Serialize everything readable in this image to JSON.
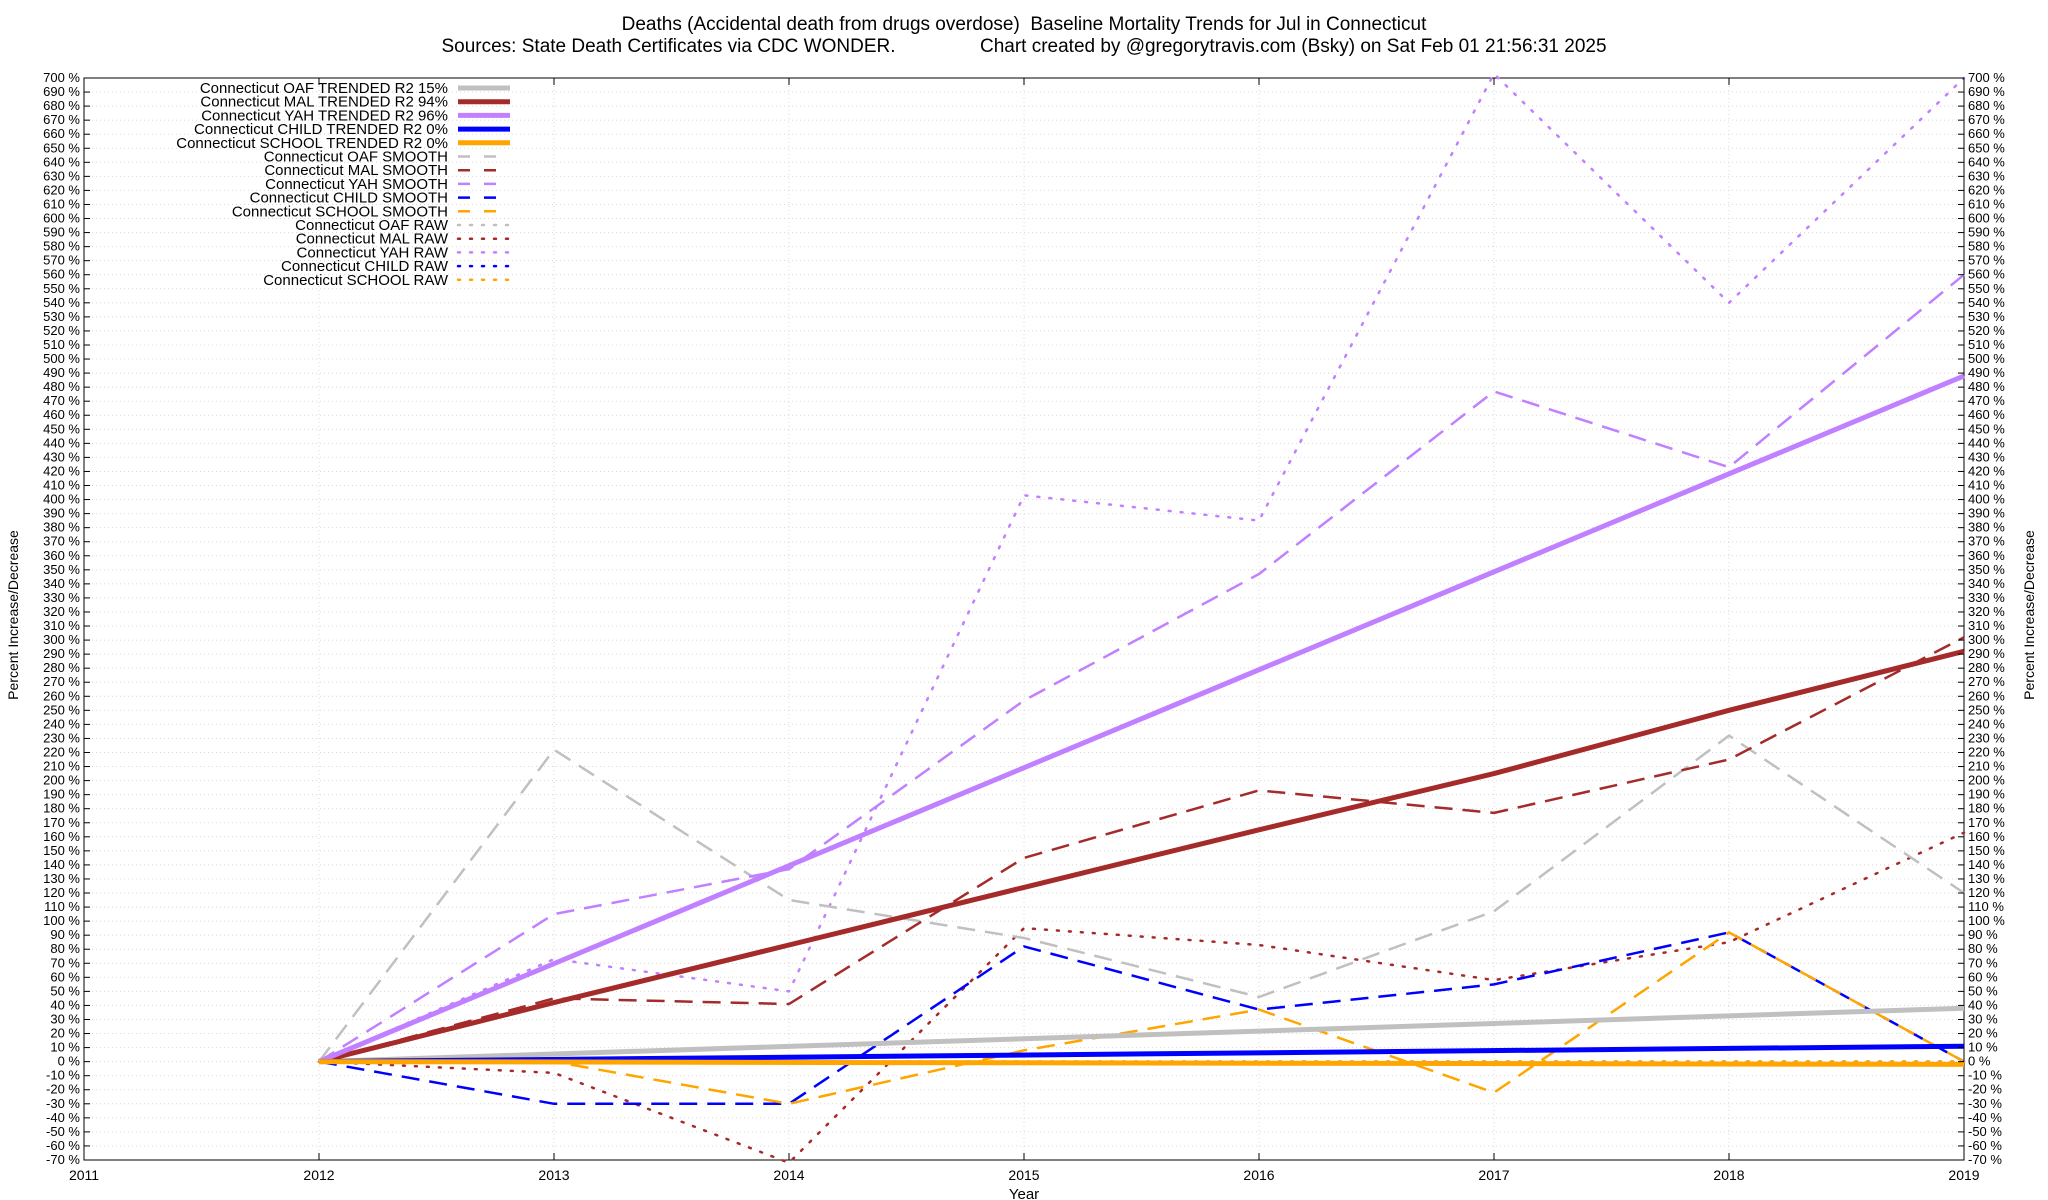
{
  "chart_data": {
    "type": "line",
    "title": "Deaths (Accidental death from drugs overdose)  Baseline Mortality Trends for Jul in Connecticut",
    "subtitle": "Sources: State Death Certificates via CDC WONDER.                Chart created by @gregorytravis.com (Bsky) on Sat Feb 01 21:56:31 2025",
    "xlabel": "Year",
    "ylabel": "Percent Increase/Decrease",
    "ylabel_right": "Percent Increase/Decrease",
    "xlim": [
      2011,
      2019
    ],
    "ylim": [
      -70,
      700
    ],
    "x_ticks": [
      "2011",
      "2012",
      "2013",
      "2014",
      "2015",
      "2016",
      "2017",
      "2018",
      "2019"
    ],
    "y_ticks": [
      "-70 %",
      "-60 %",
      "-50 %",
      "-40 %",
      "-30 %",
      "-20 %",
      "-10 %",
      "0 %",
      "10 %",
      "20 %",
      "30 %",
      "40 %",
      "50 %",
      "60 %",
      "70 %",
      "80 %",
      "90 %",
      "100 %",
      "110 %",
      "120 %",
      "130 %",
      "140 %",
      "150 %",
      "160 %",
      "170 %",
      "180 %",
      "190 %",
      "200 %",
      "210 %",
      "220 %",
      "230 %",
      "240 %",
      "250 %",
      "260 %",
      "270 %",
      "280 %",
      "290 %",
      "300 %",
      "310 %",
      "320 %",
      "330 %",
      "340 %",
      "350 %",
      "360 %",
      "370 %",
      "380 %",
      "390 %",
      "400 %",
      "410 %",
      "420 %",
      "430 %",
      "440 %",
      "450 %",
      "460 %",
      "470 %",
      "480 %",
      "490 %",
      "500 %",
      "510 %",
      "520 %",
      "530 %",
      "540 %",
      "550 %",
      "560 %",
      "570 %",
      "580 %",
      "590 %",
      "600 %",
      "610 %",
      "620 %",
      "630 %",
      "640 %",
      "650 %",
      "660 %",
      "670 %",
      "680 %",
      "690 %",
      "700 %"
    ],
    "grid": true,
    "legend_position": "top-left",
    "series": [
      {
        "name": "Connecticut OAF TRENDED R2  15%",
        "style": "solid",
        "color": "#c0c0c0",
        "x": [
          2012,
          2019
        ],
        "y": [
          0,
          38
        ]
      },
      {
        "name": "Connecticut MAL TRENDED R2  94%",
        "style": "solid",
        "color": "#a52a2a",
        "x": [
          2012,
          2013,
          2014,
          2015,
          2016,
          2017,
          2018,
          2019
        ],
        "y": [
          0,
          42,
          83,
          124,
          165,
          205,
          250,
          292
        ]
      },
      {
        "name": "Connecticut YAH TRENDED R2  96%",
        "style": "solid",
        "color": "#c080ff",
        "x": [
          2012,
          2019
        ],
        "y": [
          0,
          488
        ]
      },
      {
        "name": "Connecticut CHILD TRENDED R2   0%",
        "style": "solid",
        "color": "#0000ff",
        "x": [
          2012,
          2019
        ],
        "y": [
          0,
          11
        ]
      },
      {
        "name": "Connecticut SCHOOL TRENDED R2   0%",
        "style": "solid",
        "color": "#ffa500",
        "x": [
          2012,
          2019
        ],
        "y": [
          0,
          -2
        ]
      },
      {
        "name": "Connecticut OAF SMOOTH",
        "style": "dashed",
        "color": "#c0c0c0",
        "x": [
          2012,
          2013,
          2014,
          2015,
          2016,
          2017,
          2018,
          2019
        ],
        "y": [
          0,
          222,
          115,
          88,
          46,
          107,
          232,
          120
        ]
      },
      {
        "name": "Connecticut MAL SMOOTH",
        "style": "dashed",
        "color": "#a52a2a",
        "x": [
          2012,
          2013,
          2014,
          2015,
          2016,
          2017,
          2018,
          2019
        ],
        "y": [
          0,
          45,
          41,
          145,
          193,
          177,
          215,
          302
        ]
      },
      {
        "name": "Connecticut YAH SMOOTH",
        "style": "dashed",
        "color": "#c080ff",
        "x": [
          2012,
          2013,
          2014,
          2015,
          2016,
          2017,
          2018,
          2019
        ],
        "y": [
          0,
          105,
          137,
          257,
          347,
          477,
          423,
          560
        ]
      },
      {
        "name": "Connecticut CHILD SMOOTH",
        "style": "dashed",
        "color": "#0000ff",
        "x": [
          2012,
          2013,
          2014,
          2015,
          2016,
          2017,
          2018,
          2019
        ],
        "y": [
          0,
          -30,
          -30,
          82,
          37,
          55,
          92,
          0
        ]
      },
      {
        "name": "Connecticut SCHOOL SMOOTH",
        "style": "dashed",
        "color": "#ffa500",
        "x": [
          2012,
          2013,
          2014,
          2015,
          2016,
          2017,
          2018,
          2019
        ],
        "y": [
          0,
          0,
          -30,
          8,
          37,
          -22,
          92,
          0
        ]
      },
      {
        "name": "Connecticut OAF RAW",
        "style": "dotted",
        "color": "#c0c0c0",
        "x": [
          2012,
          2019
        ],
        "y": [
          0,
          0
        ]
      },
      {
        "name": "Connecticut MAL RAW",
        "style": "dotted",
        "color": "#a52a2a",
        "x": [
          2012,
          2013,
          2014,
          2015,
          2016,
          2017,
          2018,
          2019
        ],
        "y": [
          0,
          -8,
          -72,
          95,
          83,
          58,
          85,
          163
        ]
      },
      {
        "name": "Connecticut YAH RAW",
        "style": "dotted",
        "color": "#c080ff",
        "x": [
          2012,
          2013,
          2014,
          2015,
          2016,
          2017,
          2018,
          2019
        ],
        "y": [
          0,
          73,
          50,
          403,
          385,
          703,
          540,
          700
        ]
      },
      {
        "name": "Connecticut CHILD RAW",
        "style": "dotted",
        "color": "#0000ff",
        "x": [
          2012,
          2019
        ],
        "y": [
          0,
          0
        ]
      },
      {
        "name": "Connecticut SCHOOL RAW",
        "style": "dotted",
        "color": "#ffa500",
        "x": [
          2012,
          2019
        ],
        "y": [
          0,
          0
        ]
      }
    ]
  }
}
